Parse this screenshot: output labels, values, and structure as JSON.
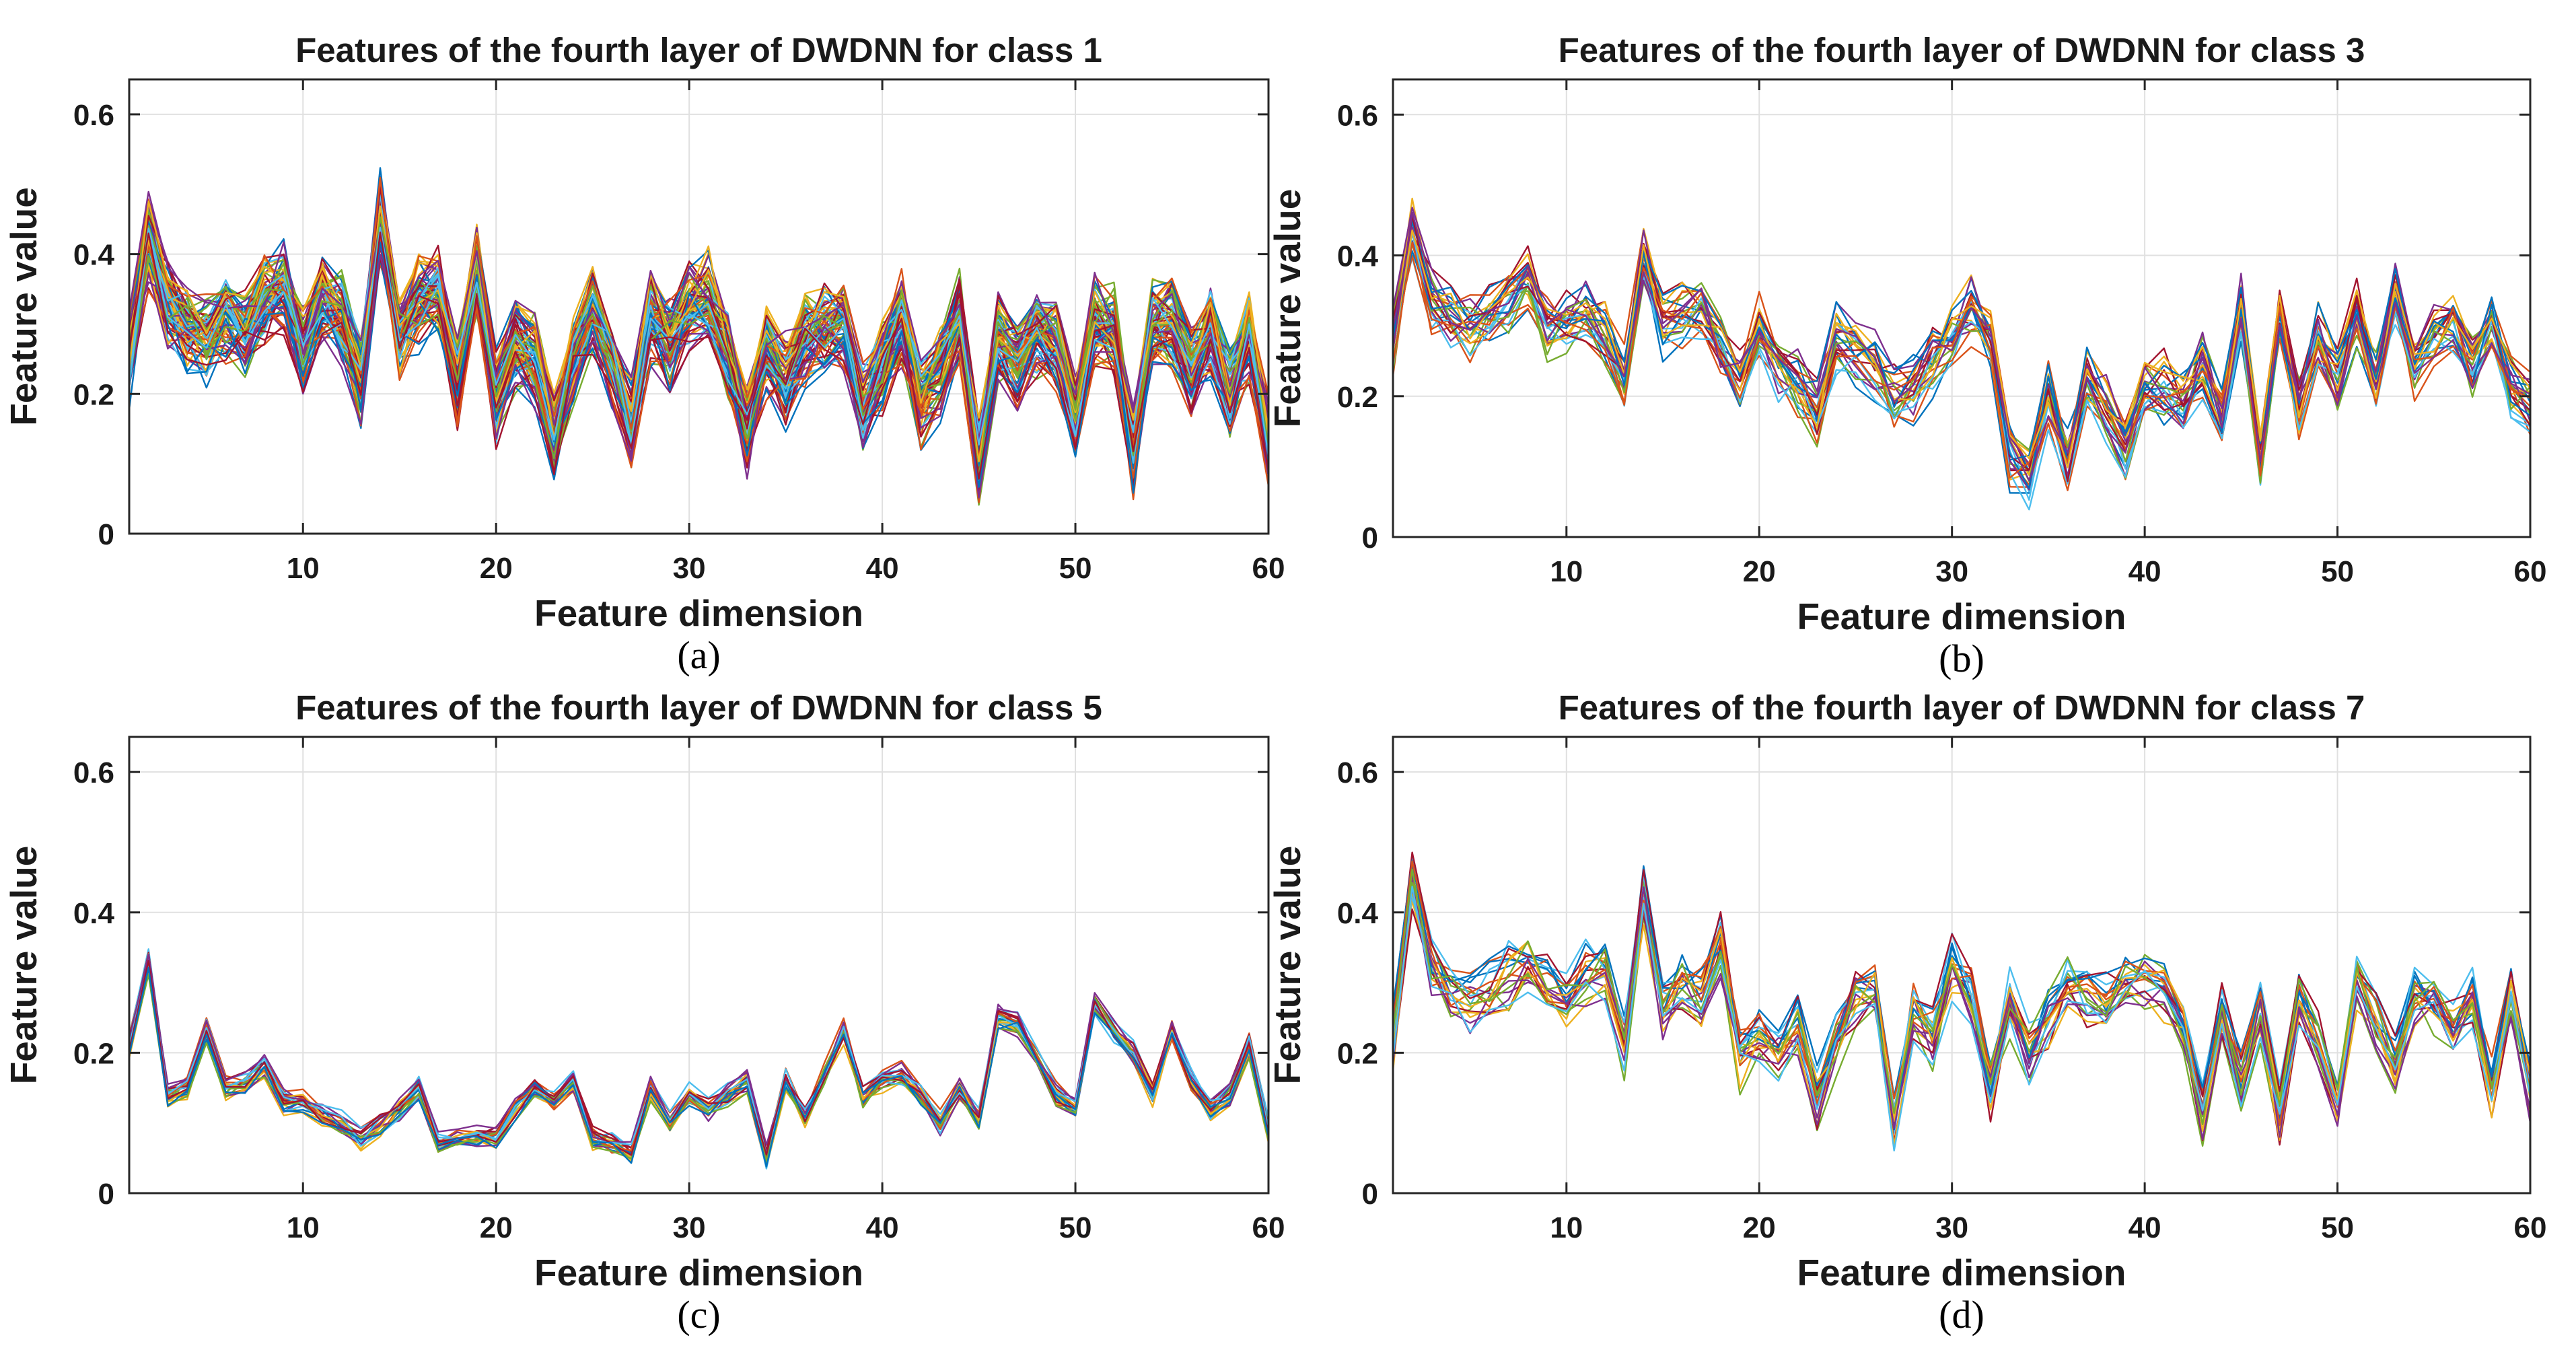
{
  "figure": {
    "series_palette": [
      "#0072BD",
      "#D95319",
      "#EDB120",
      "#7E2F8E",
      "#77AC30",
      "#4DBEEE",
      "#A2142F"
    ],
    "axis_color": "#262626",
    "grid_color": "#e0e0e0"
  },
  "chart_data": [
    {
      "type": "line",
      "panel": "a",
      "caption": "(a)",
      "title": "Features of the fourth layer of DWDNN for class 1",
      "xlabel": "Feature dimension",
      "ylabel": "Feature value",
      "xlim": [
        1,
        60
      ],
      "ylim": [
        0,
        0.65
      ],
      "xticks": [
        10,
        20,
        30,
        40,
        50,
        60
      ],
      "yticks": [
        0,
        0.2,
        0.4,
        0.6
      ],
      "xtick_labels": [
        "10",
        "20",
        "30",
        "40",
        "50",
        "60"
      ],
      "ytick_labels": [
        "0",
        "0.2",
        "0.4",
        "0.6"
      ],
      "grid": true,
      "n_series": 70,
      "spread": 0.045,
      "x": [
        1,
        2,
        3,
        4,
        5,
        6,
        7,
        8,
        9,
        10,
        11,
        12,
        13,
        14,
        15,
        16,
        17,
        18,
        19,
        20,
        21,
        22,
        23,
        24,
        25,
        26,
        27,
        28,
        29,
        30,
        31,
        32,
        33,
        34,
        35,
        36,
        37,
        38,
        39,
        40,
        41,
        42,
        43,
        44,
        45,
        46,
        47,
        48,
        49,
        50,
        51,
        52,
        53,
        54,
        55,
        56,
        57,
        58,
        59,
        60
      ],
      "mean": [
        0.25,
        0.42,
        0.33,
        0.29,
        0.28,
        0.31,
        0.29,
        0.33,
        0.35,
        0.26,
        0.33,
        0.31,
        0.22,
        0.45,
        0.28,
        0.33,
        0.34,
        0.22,
        0.38,
        0.19,
        0.27,
        0.25,
        0.14,
        0.25,
        0.32,
        0.25,
        0.16,
        0.31,
        0.27,
        0.33,
        0.34,
        0.26,
        0.15,
        0.26,
        0.22,
        0.28,
        0.29,
        0.3,
        0.18,
        0.24,
        0.31,
        0.19,
        0.23,
        0.31,
        0.11,
        0.28,
        0.24,
        0.29,
        0.27,
        0.16,
        0.3,
        0.29,
        0.12,
        0.3,
        0.3,
        0.23,
        0.29,
        0.2,
        0.28,
        0.14
      ]
    },
    {
      "type": "line",
      "panel": "b",
      "caption": "(b)",
      "title": "Features of the fourth layer of DWDNN for class 3",
      "xlabel": "Feature dimension",
      "ylabel": "Feature value",
      "xlim": [
        1,
        60
      ],
      "ylim": [
        0,
        0.65
      ],
      "xticks": [
        10,
        20,
        30,
        40,
        50,
        60
      ],
      "yticks": [
        0,
        0.2,
        0.4,
        0.6
      ],
      "xtick_labels": [
        "10",
        "20",
        "30",
        "40",
        "50",
        "60"
      ],
      "ytick_labels": [
        "0",
        "0.2",
        "0.4",
        "0.6"
      ],
      "grid": true,
      "n_series": 25,
      "spread": 0.035,
      "x": [
        1,
        2,
        3,
        4,
        5,
        6,
        7,
        8,
        9,
        10,
        11,
        12,
        13,
        14,
        15,
        16,
        17,
        18,
        19,
        20,
        21,
        22,
        23,
        24,
        25,
        26,
        27,
        28,
        29,
        30,
        31,
        32,
        33,
        34,
        35,
        36,
        37,
        38,
        39,
        40,
        41,
        42,
        43,
        44,
        45,
        46,
        47,
        48,
        49,
        50,
        51,
        52,
        53,
        54,
        55,
        56,
        57,
        58,
        59,
        60
      ],
      "mean": [
        0.27,
        0.43,
        0.33,
        0.31,
        0.3,
        0.31,
        0.33,
        0.36,
        0.29,
        0.3,
        0.31,
        0.28,
        0.22,
        0.39,
        0.3,
        0.31,
        0.32,
        0.27,
        0.22,
        0.3,
        0.24,
        0.22,
        0.17,
        0.28,
        0.26,
        0.24,
        0.19,
        0.21,
        0.25,
        0.28,
        0.32,
        0.28,
        0.11,
        0.08,
        0.2,
        0.11,
        0.22,
        0.18,
        0.12,
        0.21,
        0.21,
        0.19,
        0.24,
        0.17,
        0.32,
        0.1,
        0.31,
        0.18,
        0.28,
        0.22,
        0.31,
        0.22,
        0.34,
        0.24,
        0.28,
        0.3,
        0.24,
        0.3,
        0.21,
        0.19
      ]
    },
    {
      "type": "line",
      "panel": "c",
      "caption": "(c)",
      "title": "Features of the fourth layer of DWDNN for class 5",
      "xlabel": "Feature dimension",
      "ylabel": "Feature value",
      "xlim": [
        1,
        60
      ],
      "ylim": [
        0,
        0.65
      ],
      "xticks": [
        10,
        20,
        30,
        40,
        50,
        60
      ],
      "yticks": [
        0,
        0.2,
        0.4,
        0.6
      ],
      "xtick_labels": [
        "10",
        "20",
        "30",
        "40",
        "50",
        "60"
      ],
      "ytick_labels": [
        "0",
        "0.2",
        "0.4",
        "0.6"
      ],
      "grid": true,
      "n_series": 22,
      "spread": 0.012,
      "x": [
        1,
        2,
        3,
        4,
        5,
        6,
        7,
        8,
        9,
        10,
        11,
        12,
        13,
        14,
        15,
        16,
        17,
        18,
        19,
        20,
        21,
        22,
        23,
        24,
        25,
        26,
        27,
        28,
        29,
        30,
        31,
        32,
        33,
        34,
        35,
        36,
        37,
        38,
        39,
        40,
        41,
        42,
        43,
        44,
        45,
        46,
        47,
        48,
        49,
        50,
        51,
        52,
        53,
        54,
        55,
        56,
        57,
        58,
        59,
        60
      ],
      "mean": [
        0.21,
        0.33,
        0.14,
        0.15,
        0.23,
        0.15,
        0.16,
        0.18,
        0.13,
        0.13,
        0.11,
        0.1,
        0.08,
        0.1,
        0.12,
        0.15,
        0.07,
        0.08,
        0.08,
        0.08,
        0.12,
        0.15,
        0.13,
        0.16,
        0.08,
        0.07,
        0.06,
        0.15,
        0.1,
        0.14,
        0.12,
        0.14,
        0.16,
        0.05,
        0.16,
        0.11,
        0.17,
        0.23,
        0.14,
        0.16,
        0.17,
        0.14,
        0.1,
        0.15,
        0.11,
        0.25,
        0.24,
        0.19,
        0.14,
        0.12,
        0.27,
        0.23,
        0.2,
        0.14,
        0.23,
        0.16,
        0.12,
        0.14,
        0.21,
        0.09
      ]
    },
    {
      "type": "line",
      "panel": "d",
      "caption": "(d)",
      "title": "Features of the fourth layer of DWDNN for class 7",
      "xlabel": "Feature dimension",
      "ylabel": "Feature value",
      "xlim": [
        1,
        60
      ],
      "ylim": [
        0,
        0.65
      ],
      "xticks": [
        10,
        20,
        30,
        40,
        50,
        60
      ],
      "yticks": [
        0,
        0.2,
        0.4,
        0.6
      ],
      "xtick_labels": [
        "10",
        "20",
        "30",
        "40",
        "50",
        "60"
      ],
      "ytick_labels": [
        "0",
        "0.2",
        "0.4",
        "0.6"
      ],
      "grid": true,
      "n_series": 20,
      "spread": 0.032,
      "x": [
        1,
        2,
        3,
        4,
        5,
        6,
        7,
        8,
        9,
        10,
        11,
        12,
        13,
        14,
        15,
        16,
        17,
        18,
        19,
        20,
        21,
        22,
        23,
        24,
        25,
        26,
        27,
        28,
        29,
        30,
        31,
        32,
        33,
        34,
        35,
        36,
        37,
        38,
        39,
        40,
        41,
        42,
        43,
        44,
        45,
        46,
        47,
        48,
        49,
        50,
        51,
        52,
        53,
        54,
        55,
        56,
        57,
        58,
        59,
        60
      ],
      "mean": [
        0.22,
        0.44,
        0.32,
        0.28,
        0.27,
        0.29,
        0.31,
        0.33,
        0.29,
        0.27,
        0.31,
        0.32,
        0.21,
        0.42,
        0.26,
        0.3,
        0.28,
        0.35,
        0.19,
        0.22,
        0.2,
        0.24,
        0.14,
        0.21,
        0.28,
        0.29,
        0.1,
        0.26,
        0.22,
        0.32,
        0.28,
        0.15,
        0.27,
        0.2,
        0.25,
        0.3,
        0.28,
        0.27,
        0.3,
        0.31,
        0.29,
        0.24,
        0.11,
        0.25,
        0.16,
        0.26,
        0.11,
        0.27,
        0.21,
        0.13,
        0.3,
        0.24,
        0.18,
        0.28,
        0.27,
        0.23,
        0.27,
        0.15,
        0.28,
        0.14
      ]
    }
  ]
}
